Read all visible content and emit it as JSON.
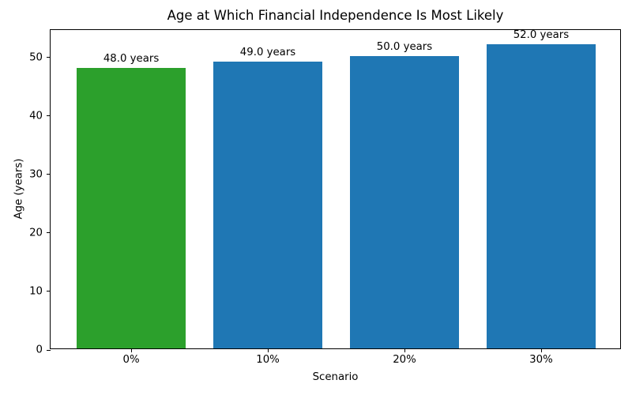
{
  "chart_data": {
    "type": "bar",
    "title": "Age at Which Financial Independence Is Most Likely",
    "xlabel": "Scenario",
    "ylabel": "Age (years)",
    "categories": [
      "0%",
      "10%",
      "20%",
      "30%"
    ],
    "values": [
      48.0,
      49.0,
      50.0,
      52.0
    ],
    "bar_labels": [
      "48.0 years",
      "49.0 years",
      "50.0 years",
      "52.0 years"
    ],
    "bar_colors": [
      "#2ca02c",
      "#1f77b4",
      "#1f77b4",
      "#1f77b4"
    ],
    "ylim": [
      0,
      54.7
    ],
    "yticks": [
      0,
      10,
      20,
      30,
      40,
      50
    ],
    "grid": false,
    "legend": "none",
    "background_color": "#ffffff",
    "spine_color": "#000000",
    "text_color": "#000000"
  }
}
